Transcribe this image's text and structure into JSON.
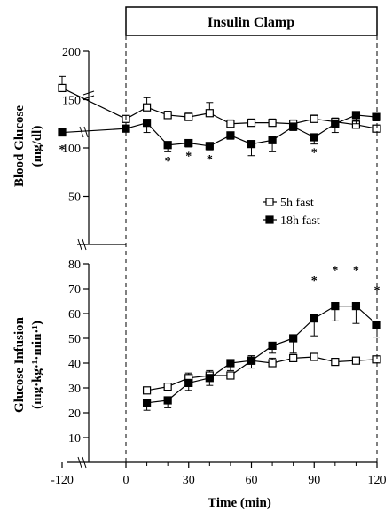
{
  "chart_data": [
    {
      "type": "line",
      "ylabel": "Blood Glucose",
      "yunits": "(mg/dl)",
      "ylim": [
        0,
        200
      ],
      "yticks": [
        "50",
        "100",
        "150",
        "200"
      ],
      "x": [
        -120,
        0,
        10,
        20,
        30,
        40,
        50,
        60,
        70,
        80,
        90,
        100,
        110,
        120
      ],
      "grid": false,
      "legend_position": "lower-right",
      "series": [
        {
          "name": "5h fast",
          "marker": "open-square",
          "values": [
            162,
            130,
            142,
            134,
            132,
            136,
            125,
            126,
            126,
            125,
            130,
            127,
            124,
            120
          ],
          "errors": [
            12,
            0,
            10,
            4,
            4,
            11,
            4,
            4,
            4,
            4,
            4,
            4,
            4,
            3
          ]
        },
        {
          "name": "18h fast",
          "marker": "filled-square",
          "values": [
            116,
            120,
            126,
            103,
            105,
            102,
            113,
            104,
            108,
            122,
            111,
            125,
            134,
            132
          ],
          "errors": [
            0,
            0,
            10,
            7,
            4,
            4,
            4,
            12,
            12,
            4,
            7,
            9,
            9,
            4
          ]
        }
      ],
      "annotations": [
        {
          "text": "*",
          "x": -120,
          "y": 100
        },
        {
          "text": "*",
          "x": 20,
          "y": 88
        },
        {
          "text": "*",
          "x": 30,
          "y": 93
        },
        {
          "text": "*",
          "x": 40,
          "y": 90
        },
        {
          "text": "*",
          "x": 90,
          "y": 97
        }
      ]
    },
    {
      "type": "line",
      "ylabel": "Glucose Infusion",
      "yunits": "(mg·kg·¹·min·¹)",
      "ylim": [
        0,
        80
      ],
      "yticks": [
        "10",
        "20",
        "30",
        "40",
        "50",
        "60",
        "70",
        "80"
      ],
      "xlabel": "Time (min)",
      "xticks": [
        "-120",
        "0",
        "30",
        "60",
        "90",
        "120"
      ],
      "x": [
        10,
        20,
        30,
        40,
        50,
        60,
        70,
        80,
        90,
        100,
        110,
        120
      ],
      "grid": false,
      "series": [
        {
          "name": "5h fast",
          "marker": "open-square",
          "values": [
            29,
            30.5,
            34,
            35,
            35,
            41,
            40,
            42,
            42.5,
            40.5,
            41,
            41.5
          ],
          "errors": [
            1,
            1,
            2,
            2,
            1,
            2,
            2,
            1,
            1,
            1,
            1,
            1
          ]
        },
        {
          "name": "18h fast",
          "marker": "filled-square",
          "values": [
            24,
            25,
            32,
            34,
            40,
            41,
            47,
            50,
            58,
            63,
            63,
            55.5
          ],
          "errors": [
            3,
            3,
            3,
            3,
            3,
            3,
            3,
            6,
            7,
            6,
            7,
            5
          ]
        }
      ],
      "annotations": [
        {
          "text": "*",
          "x": 90,
          "y": 74
        },
        {
          "text": "*",
          "x": 100,
          "y": 78
        },
        {
          "text": "*",
          "x": 110,
          "y": 78
        },
        {
          "text": "*",
          "x": 120,
          "y": 70
        }
      ]
    }
  ],
  "banner": "Insulin Clamp"
}
